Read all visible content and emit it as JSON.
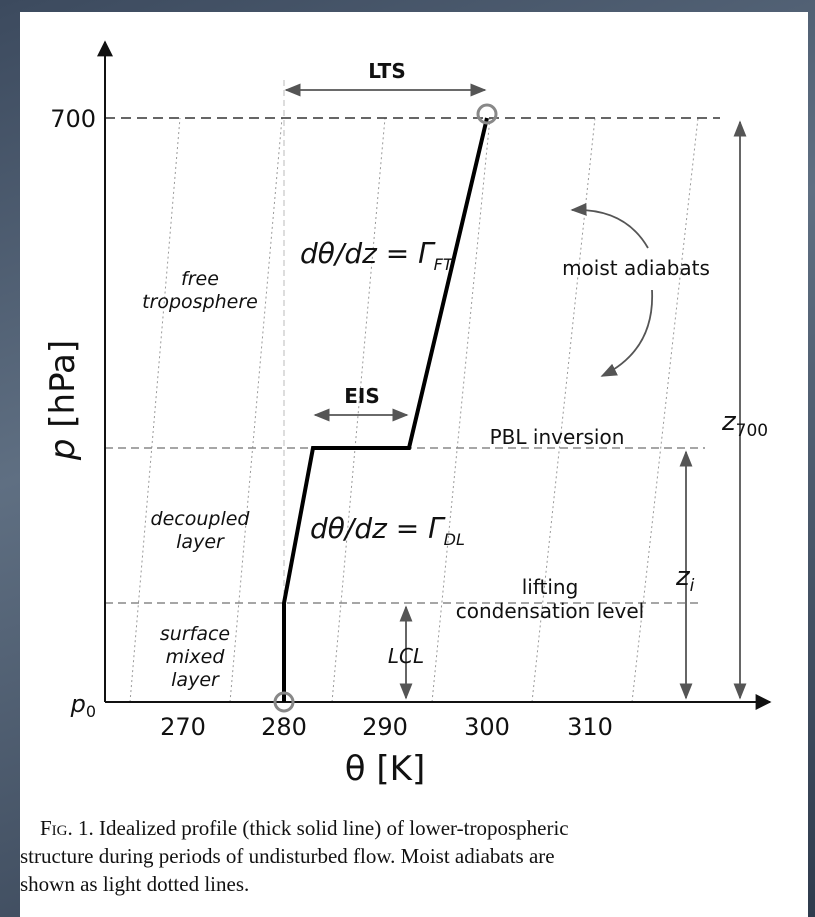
{
  "figure": {
    "x_axis_label": {
      "symbol": "θ",
      "unit": "[K]"
    },
    "y_axis_label": {
      "symbol": "p",
      "unit": "[hPa]"
    },
    "x_ticks": [
      "270",
      "280",
      "290",
      "300",
      "310"
    ],
    "y_ticks": {
      "top": "700",
      "bottom": {
        "base": "p",
        "sub": "0"
      }
    },
    "arrows": {
      "lts": "LTS",
      "eis": "EIS",
      "lcl": "LCL",
      "z700": {
        "base": "z",
        "sub": "700"
      },
      "zi": {
        "base": "z",
        "sub": "i"
      }
    },
    "equations": {
      "ft": {
        "lhs": "dθ/dz = Γ",
        "sub": "FT"
      },
      "dl": {
        "lhs": "dθ/dz = Γ",
        "sub": "DL"
      }
    },
    "regions": {
      "free": [
        "free",
        "troposphere"
      ],
      "decoupled": [
        "decoupled",
        "layer"
      ],
      "surface": [
        "surface",
        "mixed",
        "layer"
      ]
    },
    "levels": {
      "pbl": "PBL inversion",
      "lcl": [
        "lifting",
        "condensation level"
      ]
    },
    "moist_adiabats": "moist adiabats"
  },
  "caption": {
    "lead": "Fig. 1.",
    "lines": [
      "Idealized profile (thick solid line) of lower-tropospheric",
      "structure during periods of undisturbed flow. Moist adiabats are",
      "shown as light dotted lines."
    ]
  }
}
